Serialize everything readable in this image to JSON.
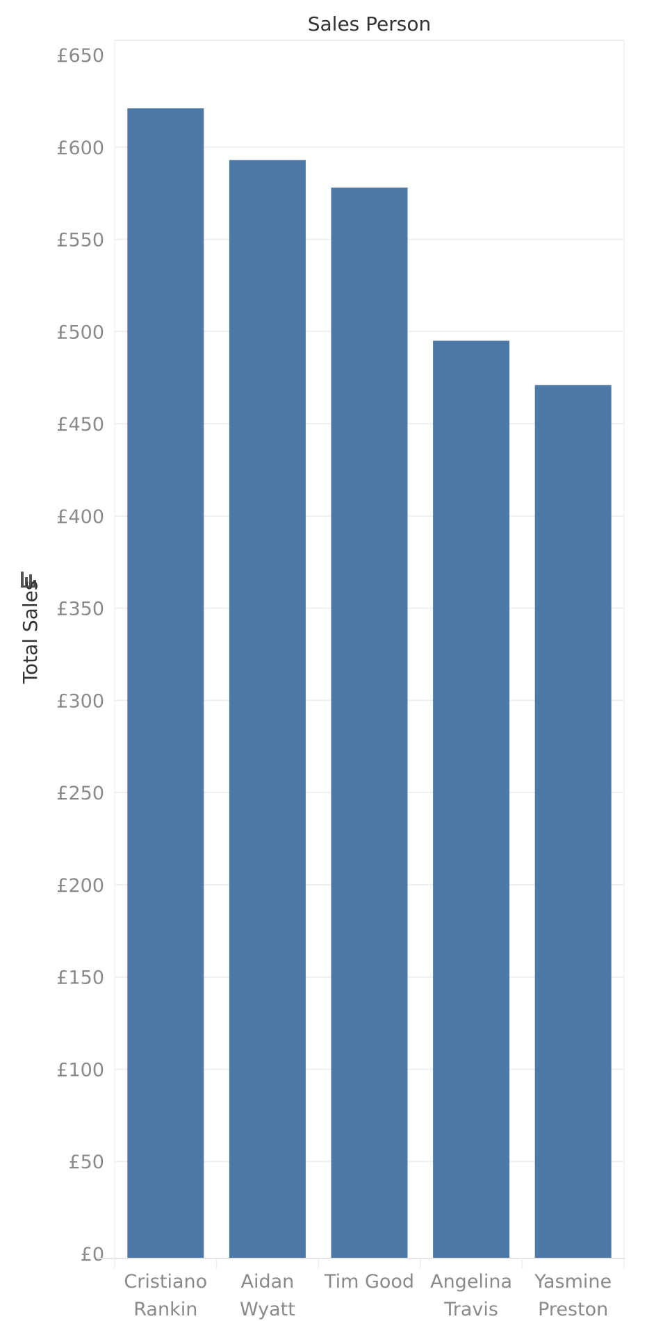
{
  "chart_data": {
    "type": "bar",
    "title": "Sales Person",
    "ylabel": "Total Sales",
    "categories": [
      [
        "Cristiano",
        "Rankin"
      ],
      [
        "Aidan",
        "Wyatt"
      ],
      [
        "Tim Good"
      ],
      [
        "Angelina",
        "Travis"
      ],
      [
        "Yasmine",
        "Preston"
      ]
    ],
    "values": [
      621,
      593,
      578,
      495,
      471
    ],
    "ylim": [
      0,
      650
    ],
    "yticks": [
      0,
      50,
      100,
      150,
      200,
      250,
      300,
      350,
      400,
      450,
      500,
      550,
      600,
      650
    ],
    "tick_prefix": "£",
    "bar_color": "#4e79a7",
    "grid": true,
    "ylabel_icon": "bar-chart-icon"
  }
}
